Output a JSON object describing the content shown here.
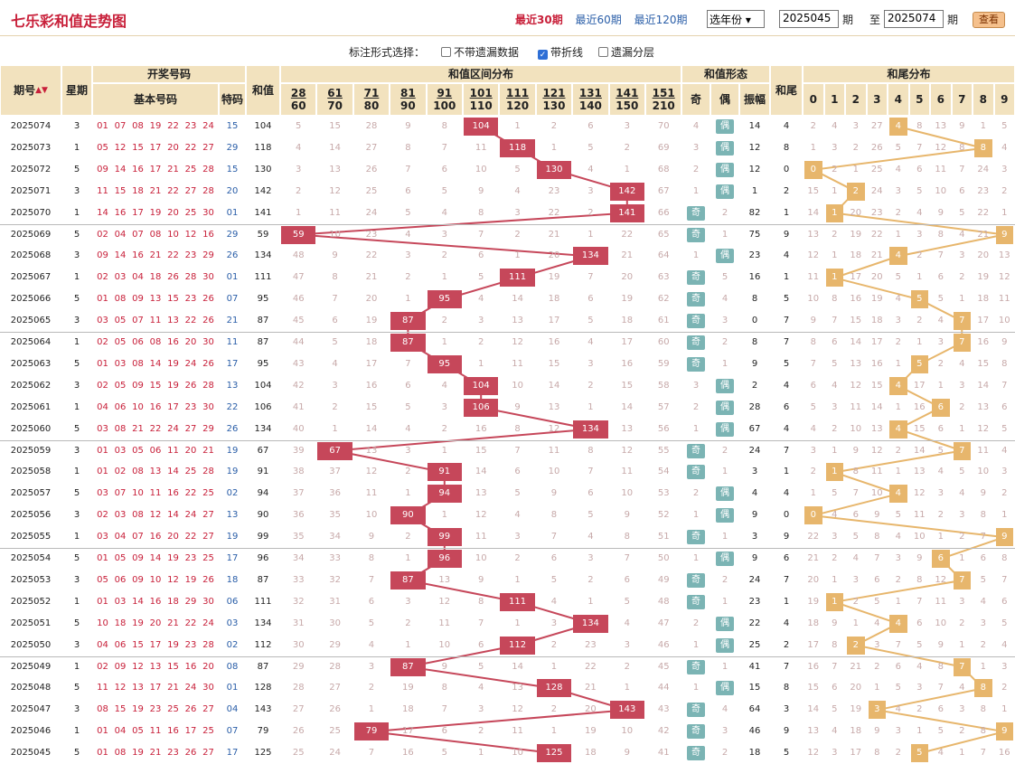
{
  "title": "七乐彩和值走势图",
  "tabs": [
    "最近30期",
    "最近60期",
    "最近120期"
  ],
  "year_select": "选年份",
  "from_issue": "2025045",
  "to_issue": "2025074",
  "label_from": "期",
  "label_to": "至",
  "label_to_qi": "期",
  "query_button": "查看",
  "options_label": "标注形式选择：",
  "options": [
    {
      "label": "不带遗漏数据",
      "checked": false
    },
    {
      "label": "带折线",
      "checked": true
    },
    {
      "label": "遗漏分层",
      "checked": false
    }
  ],
  "headers": {
    "issue": "期号",
    "week": "星期",
    "draw": "开奖号码",
    "basic": "基本号码",
    "special": "特码",
    "sum": "和值",
    "range": "和值区间分布",
    "shape": "和值形态",
    "odd": "奇",
    "even": "偶",
    "amp": "振幅",
    "tail": "和尾",
    "taildist": "和尾分布",
    "ranges": [
      [
        "28",
        "60"
      ],
      [
        "61",
        "70"
      ],
      [
        "71",
        "80"
      ],
      [
        "81",
        "90"
      ],
      [
        "91",
        "100"
      ],
      [
        "101",
        "110"
      ],
      [
        "111",
        "120"
      ],
      [
        "121",
        "130"
      ],
      [
        "131",
        "140"
      ],
      [
        "141",
        "150"
      ],
      [
        "151",
        "210"
      ]
    ],
    "tails": [
      "0",
      "1",
      "2",
      "3",
      "4",
      "5",
      "6",
      "7",
      "8",
      "9"
    ]
  },
  "rows": [
    {
      "issue": "2025074",
      "week": "3",
      "nums": [
        "01",
        "07",
        "08",
        "19",
        "22",
        "23",
        "24"
      ],
      "sp": "15",
      "sum": "104",
      "range": [
        5,
        15,
        28,
        9,
        8,
        "104",
        1,
        2,
        6,
        3,
        70
      ],
      "shape": [
        4,
        "偶"
      ],
      "amp": "14",
      "tail": "4",
      "tails": [
        2,
        4,
        3,
        27,
        "4",
        8,
        13,
        9,
        1,
        5
      ]
    },
    {
      "issue": "2025073",
      "week": "1",
      "nums": [
        "05",
        "12",
        "15",
        "17",
        "20",
        "22",
        "27"
      ],
      "sp": "29",
      "sum": "118",
      "range": [
        4,
        14,
        27,
        8,
        7,
        11,
        "118",
        1,
        5,
        2,
        69
      ],
      "shape": [
        3,
        "偶"
      ],
      "amp": "12",
      "tail": "8",
      "tails": [
        1,
        3,
        2,
        26,
        5,
        7,
        12,
        8,
        "8",
        4
      ]
    },
    {
      "issue": "2025072",
      "week": "5",
      "nums": [
        "09",
        "14",
        "16",
        "17",
        "21",
        "25",
        "28"
      ],
      "sp": "15",
      "sum": "130",
      "range": [
        3,
        13,
        26,
        7,
        6,
        10,
        5,
        "130",
        4,
        1,
        68
      ],
      "shape": [
        2,
        "偶"
      ],
      "amp": "12",
      "tail": "0",
      "tails": [
        "0",
        2,
        1,
        25,
        4,
        6,
        11,
        7,
        24,
        3
      ]
    },
    {
      "issue": "2025071",
      "week": "3",
      "nums": [
        "11",
        "15",
        "18",
        "21",
        "22",
        "27",
        "28"
      ],
      "sp": "20",
      "sum": "142",
      "range": [
        2,
        12,
        25,
        6,
        5,
        9,
        4,
        23,
        3,
        "142",
        67
      ],
      "shape": [
        1,
        "偶"
      ],
      "amp": "1",
      "tail": "2",
      "tails": [
        15,
        1,
        "2",
        24,
        3,
        5,
        10,
        6,
        23,
        2
      ]
    },
    {
      "issue": "2025070",
      "week": "1",
      "nums": [
        "14",
        "16",
        "17",
        "19",
        "20",
        "25",
        "30"
      ],
      "sp": "01",
      "sum": "141",
      "range": [
        1,
        11,
        24,
        5,
        4,
        8,
        3,
        22,
        2,
        "141",
        66
      ],
      "shape": [
        "奇",
        2
      ],
      "amp": "82",
      "tail": "1",
      "tails": [
        14,
        "1",
        20,
        23,
        2,
        4,
        9,
        5,
        22,
        1
      ]
    },
    {
      "issue": "2025069",
      "week": "5",
      "nums": [
        "02",
        "04",
        "07",
        "08",
        "10",
        "12",
        "16"
      ],
      "sp": "29",
      "sum": "59",
      "range": [
        "59",
        10,
        23,
        4,
        3,
        7,
        2,
        21,
        1,
        22,
        65
      ],
      "shape": [
        "奇",
        1
      ],
      "amp": "75",
      "tail": "9",
      "tails": [
        13,
        2,
        19,
        22,
        1,
        3,
        8,
        4,
        21,
        "9"
      ]
    },
    {
      "issue": "2025068",
      "week": "3",
      "nums": [
        "09",
        "14",
        "16",
        "21",
        "22",
        "23",
        "29"
      ],
      "sp": "26",
      "sum": "134",
      "range": [
        48,
        9,
        22,
        3,
        2,
        6,
        1,
        20,
        "134",
        21,
        64
      ],
      "shape": [
        1,
        "偶"
      ],
      "amp": "23",
      "tail": "4",
      "tails": [
        12,
        1,
        18,
        21,
        "4",
        2,
        7,
        3,
        20,
        13
      ]
    },
    {
      "issue": "2025067",
      "week": "1",
      "nums": [
        "02",
        "03",
        "04",
        "18",
        "26",
        "28",
        "30"
      ],
      "sp": "01",
      "sum": "111",
      "range": [
        47,
        8,
        21,
        2,
        1,
        5,
        "111",
        19,
        7,
        20,
        63
      ],
      "shape": [
        "奇",
        5
      ],
      "amp": "16",
      "tail": "1",
      "tails": [
        11,
        "1",
        17,
        20,
        5,
        1,
        6,
        2,
        19,
        12
      ]
    },
    {
      "issue": "2025066",
      "week": "5",
      "nums": [
        "01",
        "08",
        "09",
        "13",
        "15",
        "23",
        "26"
      ],
      "sp": "07",
      "sum": "95",
      "range": [
        46,
        7,
        20,
        1,
        "95",
        4,
        14,
        18,
        6,
        19,
        62
      ],
      "shape": [
        "奇",
        4
      ],
      "amp": "8",
      "tail": "5",
      "tails": [
        10,
        8,
        16,
        19,
        4,
        "5",
        5,
        1,
        18,
        11
      ]
    },
    {
      "issue": "2025065",
      "week": "3",
      "nums": [
        "03",
        "05",
        "07",
        "11",
        "13",
        "22",
        "26"
      ],
      "sp": "21",
      "sum": "87",
      "range": [
        45,
        6,
        19,
        "87",
        2,
        3,
        13,
        17,
        5,
        18,
        61
      ],
      "shape": [
        "奇",
        3
      ],
      "amp": "0",
      "tail": "7",
      "tails": [
        9,
        7,
        15,
        18,
        3,
        2,
        4,
        "7",
        17,
        10
      ]
    },
    {
      "issue": "2025064",
      "week": "1",
      "nums": [
        "02",
        "05",
        "06",
        "08",
        "16",
        "20",
        "30"
      ],
      "sp": "11",
      "sum": "87",
      "range": [
        44,
        5,
        18,
        "87",
        1,
        2,
        12,
        16,
        4,
        17,
        60
      ],
      "shape": [
        "奇",
        2
      ],
      "amp": "8",
      "tail": "7",
      "tails": [
        8,
        6,
        14,
        17,
        2,
        1,
        3,
        "7",
        16,
        9
      ]
    },
    {
      "issue": "2025063",
      "week": "5",
      "nums": [
        "01",
        "03",
        "08",
        "14",
        "19",
        "24",
        "26"
      ],
      "sp": "17",
      "sum": "95",
      "range": [
        43,
        4,
        17,
        7,
        "95",
        1,
        11,
        15,
        3,
        16,
        59
      ],
      "shape": [
        "奇",
        1
      ],
      "amp": "9",
      "tail": "5",
      "tails": [
        7,
        5,
        13,
        16,
        1,
        "5",
        2,
        4,
        15,
        8
      ]
    },
    {
      "issue": "2025062",
      "week": "3",
      "nums": [
        "02",
        "05",
        "09",
        "15",
        "19",
        "26",
        "28"
      ],
      "sp": "13",
      "sum": "104",
      "range": [
        42,
        3,
        16,
        6,
        4,
        "104",
        10,
        14,
        2,
        15,
        58
      ],
      "shape": [
        3,
        "偶"
      ],
      "amp": "2",
      "tail": "4",
      "tails": [
        6,
        4,
        12,
        15,
        "4",
        17,
        1,
        3,
        14,
        7
      ]
    },
    {
      "issue": "2025061",
      "week": "1",
      "nums": [
        "04",
        "06",
        "10",
        "16",
        "17",
        "23",
        "30"
      ],
      "sp": "22",
      "sum": "106",
      "range": [
        41,
        2,
        15,
        5,
        3,
        "106",
        9,
        13,
        1,
        14,
        57
      ],
      "shape": [
        2,
        "偶"
      ],
      "amp": "28",
      "tail": "6",
      "tails": [
        5,
        3,
        11,
        14,
        1,
        16,
        "6",
        2,
        13,
        6
      ]
    },
    {
      "issue": "2025060",
      "week": "5",
      "nums": [
        "03",
        "08",
        "21",
        "22",
        "24",
        "27",
        "29"
      ],
      "sp": "26",
      "sum": "134",
      "range": [
        40,
        1,
        14,
        4,
        2,
        16,
        8,
        12,
        "134",
        13,
        56
      ],
      "shape": [
        1,
        "偶"
      ],
      "amp": "67",
      "tail": "4",
      "tails": [
        4,
        2,
        10,
        13,
        "4",
        15,
        6,
        1,
        12,
        5
      ]
    },
    {
      "issue": "2025059",
      "week": "3",
      "nums": [
        "01",
        "03",
        "05",
        "06",
        "11",
        "20",
        "21"
      ],
      "sp": "19",
      "sum": "67",
      "range": [
        39,
        "67",
        13,
        3,
        1,
        15,
        7,
        11,
        8,
        12,
        55
      ],
      "shape": [
        "奇",
        2
      ],
      "amp": "24",
      "tail": "7",
      "tails": [
        3,
        1,
        9,
        12,
        2,
        14,
        5,
        "7",
        11,
        4
      ]
    },
    {
      "issue": "2025058",
      "week": "1",
      "nums": [
        "01",
        "02",
        "08",
        "13",
        "14",
        "25",
        "28"
      ],
      "sp": "19",
      "sum": "91",
      "range": [
        38,
        37,
        12,
        2,
        "91",
        14,
        6,
        10,
        7,
        11,
        54
      ],
      "shape": [
        "奇",
        1
      ],
      "amp": "3",
      "tail": "1",
      "tails": [
        2,
        "1",
        8,
        11,
        1,
        13,
        4,
        5,
        10,
        3
      ]
    },
    {
      "issue": "2025057",
      "week": "5",
      "nums": [
        "03",
        "07",
        "10",
        "11",
        "16",
        "22",
        "25"
      ],
      "sp": "02",
      "sum": "94",
      "range": [
        37,
        36,
        11,
        1,
        "94",
        13,
        5,
        9,
        6,
        10,
        53
      ],
      "shape": [
        2,
        "偶"
      ],
      "amp": "4",
      "tail": "4",
      "tails": [
        1,
        5,
        7,
        10,
        "4",
        12,
        3,
        4,
        9,
        2
      ]
    },
    {
      "issue": "2025056",
      "week": "3",
      "nums": [
        "02",
        "03",
        "08",
        "12",
        "14",
        "24",
        "27"
      ],
      "sp": "13",
      "sum": "90",
      "range": [
        36,
        35,
        10,
        "90",
        1,
        12,
        4,
        8,
        5,
        9,
        52
      ],
      "shape": [
        1,
        "偶"
      ],
      "amp": "9",
      "tail": "0",
      "tails": [
        "0",
        4,
        6,
        9,
        5,
        11,
        2,
        3,
        8,
        1
      ]
    },
    {
      "issue": "2025055",
      "week": "1",
      "nums": [
        "03",
        "04",
        "07",
        "16",
        "20",
        "22",
        "27"
      ],
      "sp": "19",
      "sum": "99",
      "range": [
        35,
        34,
        9,
        2,
        "99",
        11,
        3,
        7,
        4,
        8,
        51
      ],
      "shape": [
        "奇",
        1
      ],
      "amp": "3",
      "tail": "9",
      "tails": [
        22,
        3,
        5,
        8,
        4,
        10,
        1,
        2,
        7,
        "9"
      ]
    },
    {
      "issue": "2025054",
      "week": "5",
      "nums": [
        "01",
        "05",
        "09",
        "14",
        "19",
        "23",
        "25"
      ],
      "sp": "17",
      "sum": "96",
      "range": [
        34,
        33,
        8,
        1,
        "96",
        10,
        2,
        6,
        3,
        7,
        50
      ],
      "shape": [
        1,
        "偶"
      ],
      "amp": "9",
      "tail": "6",
      "tails": [
        21,
        2,
        4,
        7,
        3,
        9,
        "6",
        1,
        6,
        8
      ]
    },
    {
      "issue": "2025053",
      "week": "3",
      "nums": [
        "05",
        "06",
        "09",
        "10",
        "12",
        "19",
        "26"
      ],
      "sp": "18",
      "sum": "87",
      "range": [
        33,
        32,
        7,
        "87",
        13,
        9,
        1,
        5,
        2,
        6,
        49
      ],
      "shape": [
        "奇",
        2
      ],
      "amp": "24",
      "tail": "7",
      "tails": [
        20,
        1,
        3,
        6,
        2,
        8,
        12,
        "7",
        5,
        7
      ]
    },
    {
      "issue": "2025052",
      "week": "1",
      "nums": [
        "01",
        "03",
        "14",
        "16",
        "18",
        "29",
        "30"
      ],
      "sp": "06",
      "sum": "111",
      "range": [
        32,
        31,
        6,
        3,
        12,
        8,
        "111",
        4,
        1,
        5,
        48
      ],
      "shape": [
        "奇",
        1
      ],
      "amp": "23",
      "tail": "1",
      "tails": [
        19,
        "1",
        2,
        5,
        1,
        7,
        11,
        3,
        4,
        6
      ]
    },
    {
      "issue": "2025051",
      "week": "5",
      "nums": [
        "10",
        "18",
        "19",
        "20",
        "21",
        "22",
        "24"
      ],
      "sp": "03",
      "sum": "134",
      "range": [
        31,
        30,
        5,
        2,
        11,
        7,
        1,
        3,
        "134",
        4,
        47
      ],
      "shape": [
        2,
        "偶"
      ],
      "amp": "22",
      "tail": "4",
      "tails": [
        18,
        9,
        1,
        4,
        "4",
        6,
        10,
        2,
        3,
        5
      ]
    },
    {
      "issue": "2025050",
      "week": "3",
      "nums": [
        "04",
        "06",
        "15",
        "17",
        "19",
        "23",
        "28"
      ],
      "sp": "02",
      "sum": "112",
      "range": [
        30,
        29,
        4,
        1,
        10,
        6,
        "112",
        2,
        23,
        3,
        46
      ],
      "shape": [
        1,
        "偶"
      ],
      "amp": "25",
      "tail": "2",
      "tails": [
        17,
        8,
        "2",
        3,
        7,
        5,
        9,
        1,
        2,
        4
      ]
    },
    {
      "issue": "2025049",
      "week": "1",
      "nums": [
        "02",
        "09",
        "12",
        "13",
        "15",
        "16",
        "20"
      ],
      "sp": "08",
      "sum": "87",
      "range": [
        29,
        28,
        3,
        "87",
        9,
        5,
        14,
        1,
        22,
        2,
        45
      ],
      "shape": [
        "奇",
        1
      ],
      "amp": "41",
      "tail": "7",
      "tails": [
        16,
        7,
        21,
        2,
        6,
        4,
        8,
        "7",
        1,
        3
      ]
    },
    {
      "issue": "2025048",
      "week": "5",
      "nums": [
        "11",
        "12",
        "13",
        "17",
        "21",
        "24",
        "30"
      ],
      "sp": "01",
      "sum": "128",
      "range": [
        28,
        27,
        2,
        19,
        8,
        4,
        13,
        "128",
        21,
        1,
        44
      ],
      "shape": [
        1,
        "偶"
      ],
      "amp": "15",
      "tail": "8",
      "tails": [
        15,
        6,
        20,
        1,
        5,
        3,
        7,
        4,
        "8",
        2
      ]
    },
    {
      "issue": "2025047",
      "week": "3",
      "nums": [
        "08",
        "15",
        "19",
        "23",
        "25",
        "26",
        "27"
      ],
      "sp": "04",
      "sum": "143",
      "range": [
        27,
        26,
        1,
        18,
        7,
        3,
        12,
        2,
        20,
        "143",
        43
      ],
      "shape": [
        "奇",
        4
      ],
      "amp": "64",
      "tail": "3",
      "tails": [
        14,
        5,
        19,
        "3",
        4,
        2,
        6,
        3,
        8,
        1
      ]
    },
    {
      "issue": "2025046",
      "week": "1",
      "nums": [
        "01",
        "04",
        "05",
        "11",
        "16",
        "17",
        "25"
      ],
      "sp": "07",
      "sum": "79",
      "range": [
        26,
        25,
        "79",
        17,
        6,
        2,
        11,
        1,
        19,
        10,
        42
      ],
      "shape": [
        "奇",
        3
      ],
      "amp": "46",
      "tail": "9",
      "tails": [
        13,
        4,
        18,
        9,
        3,
        1,
        5,
        2,
        8,
        "9"
      ]
    },
    {
      "issue": "2025045",
      "week": "5",
      "nums": [
        "01",
        "08",
        "19",
        "21",
        "23",
        "26",
        "27"
      ],
      "sp": "17",
      "sum": "125",
      "range": [
        25,
        24,
        7,
        16,
        5,
        1,
        10,
        "125",
        18,
        9,
        41
      ],
      "shape": [
        "奇",
        2
      ],
      "amp": "18",
      "tail": "5",
      "tails": [
        12,
        3,
        17,
        8,
        2,
        "5",
        4,
        1,
        7,
        16
      ]
    }
  ],
  "colors": {
    "header_bg": "#f2e2be",
    "hit_red": "#c6475a",
    "tail_orange": "#e7b66c",
    "shape_teal": "#7bb4b4",
    "accent": "#c8203a"
  }
}
